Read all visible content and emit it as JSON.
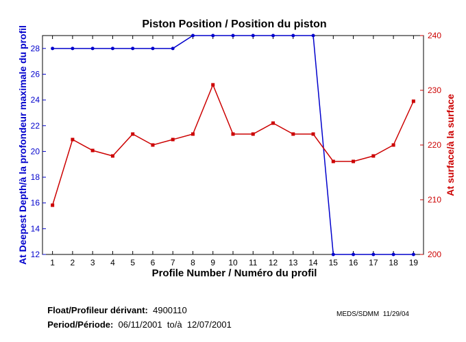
{
  "chart_data": {
    "type": "line",
    "title": "Piston Position / Position du piston",
    "xlabel": "Profile Number / Numéro du profil",
    "ylabel_left": "At Deepest Depth/à la profondeur maximale du profil",
    "ylabel_right": "At surface/à la surface",
    "x": [
      1,
      2,
      3,
      4,
      5,
      6,
      7,
      8,
      9,
      10,
      11,
      12,
      13,
      14,
      15,
      16,
      17,
      18,
      19
    ],
    "xlim": [
      0.5,
      19.5
    ],
    "ylim_left": [
      12,
      29
    ],
    "yticks_left": [
      12,
      14,
      16,
      18,
      20,
      22,
      24,
      26,
      28
    ],
    "ylim_right": [
      200,
      240
    ],
    "yticks_right": [
      200,
      210,
      220,
      230,
      240
    ],
    "grid": false,
    "legend": "none",
    "series": [
      {
        "axis": "left",
        "color": "#0000cc",
        "values": [
          28,
          28,
          28,
          28,
          28,
          28,
          28,
          29,
          29,
          29,
          29,
          29,
          29,
          29,
          12,
          12,
          12,
          12,
          12
        ]
      },
      {
        "axis": "right",
        "color": "#cc0000",
        "values": [
          209,
          221,
          219,
          218,
          222,
          220,
          221,
          222,
          231,
          222,
          222,
          224,
          222,
          222,
          217,
          217,
          218,
          220,
          228
        ]
      }
    ]
  },
  "footer": {
    "float_label": "Float/Profileur dérivant:",
    "float_value": "4900110",
    "period_label": "Period/Période:",
    "period_start": "06/11/2001",
    "period_to": "to/à",
    "period_end": "12/07/2001",
    "credit": "MEDS/SDMM  11/29/04"
  }
}
